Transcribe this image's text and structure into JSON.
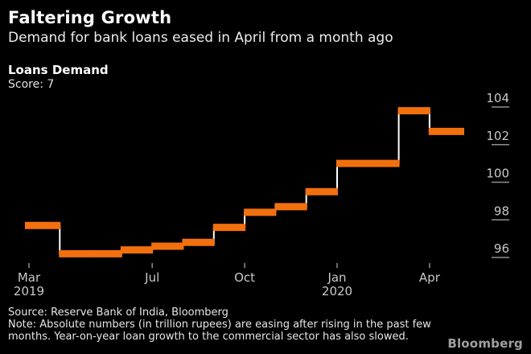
{
  "header": {
    "title": "Faltering Growth",
    "subtitle": "Demand for bank loans eased in April from a month ago"
  },
  "legend": {
    "series_label": "Loans Demand",
    "score_label": "Score: 7"
  },
  "footer": {
    "source": "Source: Reserve Bank of India, Bloomberg",
    "note_line1": "Note: Absolute numbers (in trillion rupees) are easing after rising in the past few",
    "note_line2": "months. Year-on-year loan growth to the commercial sector has also slowed.",
    "brand": "Bloomberg"
  },
  "chart_data": {
    "type": "line",
    "subtype": "step-post",
    "title": "Loans Demand",
    "xlabel": "",
    "ylabel": "",
    "x": [
      "Mar 2019",
      "Apr 2019",
      "May 2019",
      "Jun 2019",
      "Jul 2019",
      "Aug 2019",
      "Sep 2019",
      "Oct 2019",
      "Nov 2019",
      "Dec 2019",
      "Jan 2020",
      "Feb 2020",
      "Mar 2020",
      "Apr 2020"
    ],
    "series": [
      {
        "name": "Loans Demand",
        "values": [
          97.7,
          96.2,
          96.2,
          96.4,
          96.6,
          96.8,
          97.6,
          98.4,
          98.7,
          99.5,
          101.0,
          101.0,
          103.8,
          102.7
        ]
      }
    ],
    "yticks": [
      104,
      102,
      100,
      98,
      96
    ],
    "xticks": [
      {
        "index": 0,
        "label": "Mar",
        "sublabel": "2019"
      },
      {
        "index": 4,
        "label": "Jul",
        "sublabel": ""
      },
      {
        "index": 7,
        "label": "Oct",
        "sublabel": ""
      },
      {
        "index": 10,
        "label": "Jan",
        "sublabel": "2020"
      },
      {
        "index": 13,
        "label": "Apr",
        "sublabel": ""
      }
    ],
    "ylim": [
      95.5,
      104.5
    ],
    "grid": false,
    "legend_position": "top-left",
    "colors": {
      "series": "#f2700e",
      "connector": "#ffffff",
      "axis_text": "#c8c8c8",
      "tick_line": "#8f8f8f",
      "background": "#000000"
    }
  }
}
